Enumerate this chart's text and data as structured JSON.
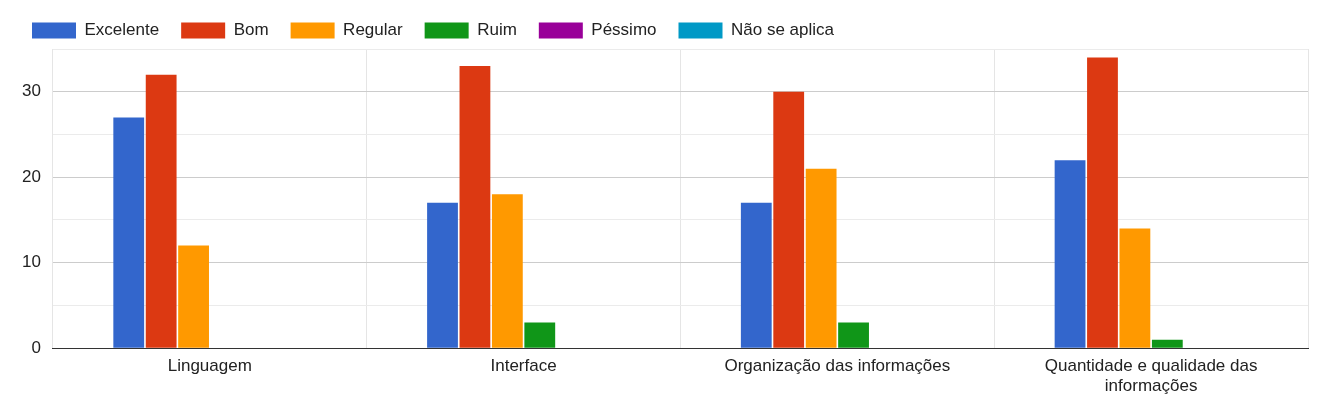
{
  "chart_data": {
    "type": "bar",
    "categories": [
      "Linguagem",
      "Interface",
      "Organização das informações",
      "Quantidade e qualidade das informações"
    ],
    "series": [
      {
        "name": "Excelente",
        "color": "#3366cc",
        "values": [
          27,
          17,
          17,
          22
        ]
      },
      {
        "name": "Bom",
        "color": "#dc3912",
        "values": [
          32,
          33,
          30,
          34
        ]
      },
      {
        "name": "Regular",
        "color": "#ff9900",
        "values": [
          12,
          18,
          21,
          14
        ]
      },
      {
        "name": "Ruim",
        "color": "#109618",
        "values": [
          0,
          3,
          3,
          1
        ]
      },
      {
        "name": "Péssimo",
        "color": "#990099",
        "values": [
          0,
          0,
          0,
          0
        ]
      },
      {
        "name": "Não se aplica",
        "color": "#0099c6",
        "values": [
          0,
          0,
          0,
          0
        ]
      }
    ],
    "ylim": [
      0,
      35
    ],
    "yticks": [
      0,
      {
        "value": 5,
        "label": null
      },
      10,
      {
        "value": 15,
        "label": null
      },
      20,
      {
        "value": 25,
        "label": null
      },
      30,
      {
        "value": 35,
        "label": null
      }
    ],
    "grid": true,
    "legend": "top left"
  }
}
